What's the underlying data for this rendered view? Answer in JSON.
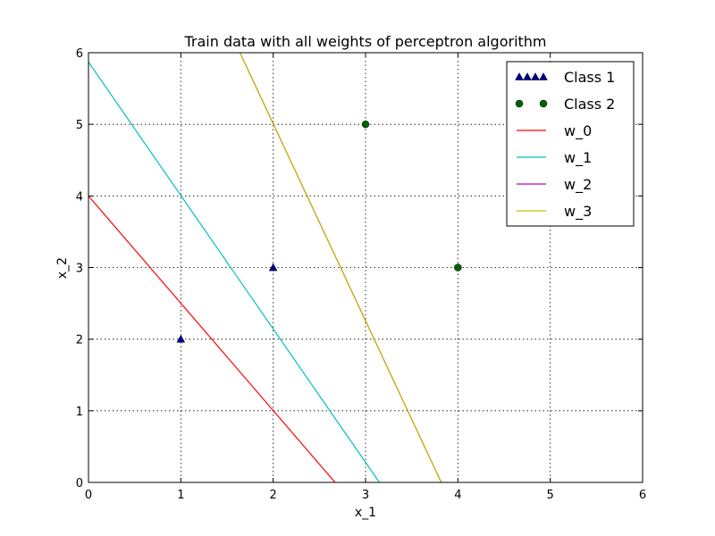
{
  "chart_data": {
    "type": "scatter",
    "title": "Train data with all weights of perceptron algorithm",
    "xlabel": "x_1",
    "ylabel": "x_2",
    "xlim": [
      0,
      6
    ],
    "ylim": [
      0,
      6
    ],
    "xticks": [
      0,
      1,
      2,
      3,
      4,
      5,
      6
    ],
    "yticks": [
      0,
      1,
      2,
      3,
      4,
      5,
      6
    ],
    "grid": true,
    "legend_position": "top-right",
    "points": [
      {
        "name": "Class 1",
        "marker": "triangle",
        "color": "#00008b",
        "x": [
          1,
          2
        ],
        "y": [
          2,
          3
        ]
      },
      {
        "name": "Class 2",
        "marker": "circle",
        "color": "#006400",
        "x": [
          3,
          4
        ],
        "y": [
          5,
          3
        ]
      }
    ],
    "lines": [
      {
        "name": "w_0",
        "color": "#ff0000",
        "x": [
          0,
          2.67
        ],
        "y": [
          4,
          0
        ]
      },
      {
        "name": "w_1",
        "color": "#00bfbf",
        "x": [
          0,
          3.15
        ],
        "y": [
          5.87,
          0
        ]
      },
      {
        "name": "w_2",
        "color": "#bf00bf",
        "x": [
          1.64,
          3.82
        ],
        "y": [
          6,
          0
        ]
      },
      {
        "name": "w_3",
        "color": "#bfbf00",
        "x": [
          1.64,
          3.82
        ],
        "y": [
          6,
          0
        ]
      }
    ]
  }
}
